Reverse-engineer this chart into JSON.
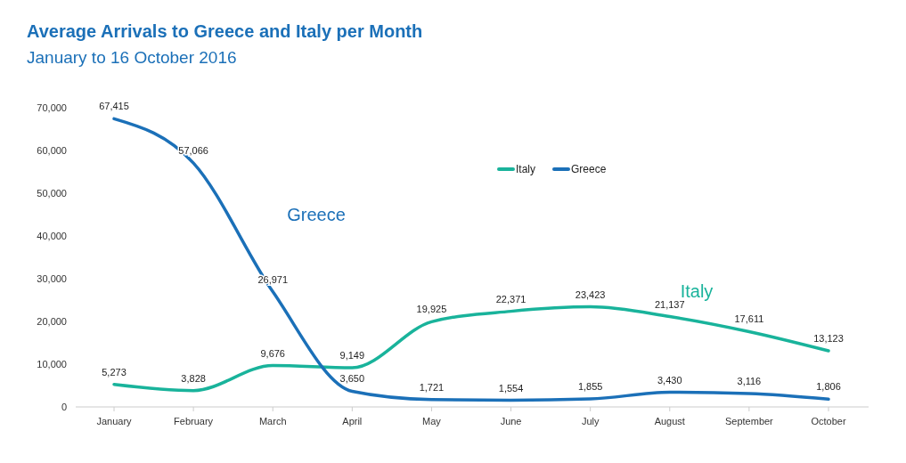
{
  "chart_data": {
    "type": "line",
    "title": "Average Arrivals to Greece and Italy per Month",
    "subtitle": "January to 16 October 2016",
    "categories": [
      "January",
      "February",
      "March",
      "April",
      "May",
      "June",
      "July",
      "August",
      "September",
      "October"
    ],
    "series": [
      {
        "name": "Italy",
        "color": "#19b39b",
        "values": [
          5273,
          3828,
          9676,
          9149,
          19925,
          22371,
          23423,
          21137,
          17611,
          13123
        ],
        "value_labels": [
          "5,273",
          "3,828",
          "9,676",
          "9,149",
          "19,925",
          "22,371",
          "23,423",
          "21,137",
          "17,611",
          "13,123"
        ]
      },
      {
        "name": "Greece",
        "color": "#1b70b8",
        "values": [
          67415,
          57066,
          26971,
          3650,
          1721,
          1554,
          1855,
          3430,
          3116,
          1806
        ],
        "value_labels": [
          "67,415",
          "57,066",
          "26,971",
          "3,650",
          "1,721",
          "1,554",
          "1,855",
          "3,430",
          "3,116",
          "1,806"
        ]
      }
    ],
    "ylim": [
      0,
      70000
    ],
    "yticks": [
      {
        "value": 0,
        "label": "0"
      },
      {
        "value": 10000,
        "label": "10,000"
      },
      {
        "value": 20000,
        "label": "20,000"
      },
      {
        "value": 30000,
        "label": "30,000"
      },
      {
        "value": 40000,
        "label": "40,000"
      },
      {
        "value": 50000,
        "label": "50,000"
      },
      {
        "value": 60000,
        "label": "60,000"
      },
      {
        "value": 70000,
        "label": "70,000"
      }
    ],
    "annotations": [
      "Greece",
      "Italy"
    ],
    "grid": false,
    "legend": "top",
    "marker": "none",
    "line_style": "solid"
  }
}
